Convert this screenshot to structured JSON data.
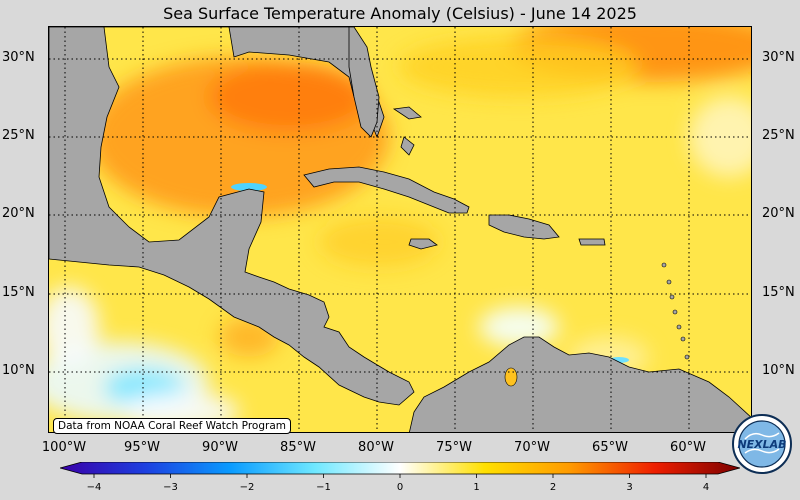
{
  "title": "Sea Surface Temperature Anomaly (Celsius) - June 14 2025",
  "credit": "Data from NOAA Coral Reef Watch Program",
  "logo_text": "NEXLAB",
  "lat_labels": [
    "30°N",
    "25°N",
    "20°N",
    "15°N",
    "10°N"
  ],
  "lon_labels": [
    "100°W",
    "95°W",
    "90°W",
    "85°W",
    "80°W",
    "75°W",
    "70°W",
    "65°W",
    "60°W"
  ],
  "colorbar": {
    "min": -4,
    "max": 4,
    "ticks": [
      "−4",
      "−3",
      "−2",
      "−1",
      "0",
      "1",
      "2",
      "3",
      "4"
    ],
    "colors": {
      "neg4": "#3a00a8",
      "neg3": "#1d3fe0",
      "neg2": "#0a9bff",
      "neg1": "#6fe8ff",
      "zero": "#ffffff",
      "pos1": "#ffe000",
      "pos2": "#ff9a00",
      "pos3": "#ee1e00",
      "pos4": "#7a0000"
    }
  },
  "map": {
    "extent_lon": [
      -102,
      -57
    ],
    "extent_lat": [
      6,
      32
    ],
    "land_color": "#a6a6a6",
    "grid": "dotted"
  }
}
